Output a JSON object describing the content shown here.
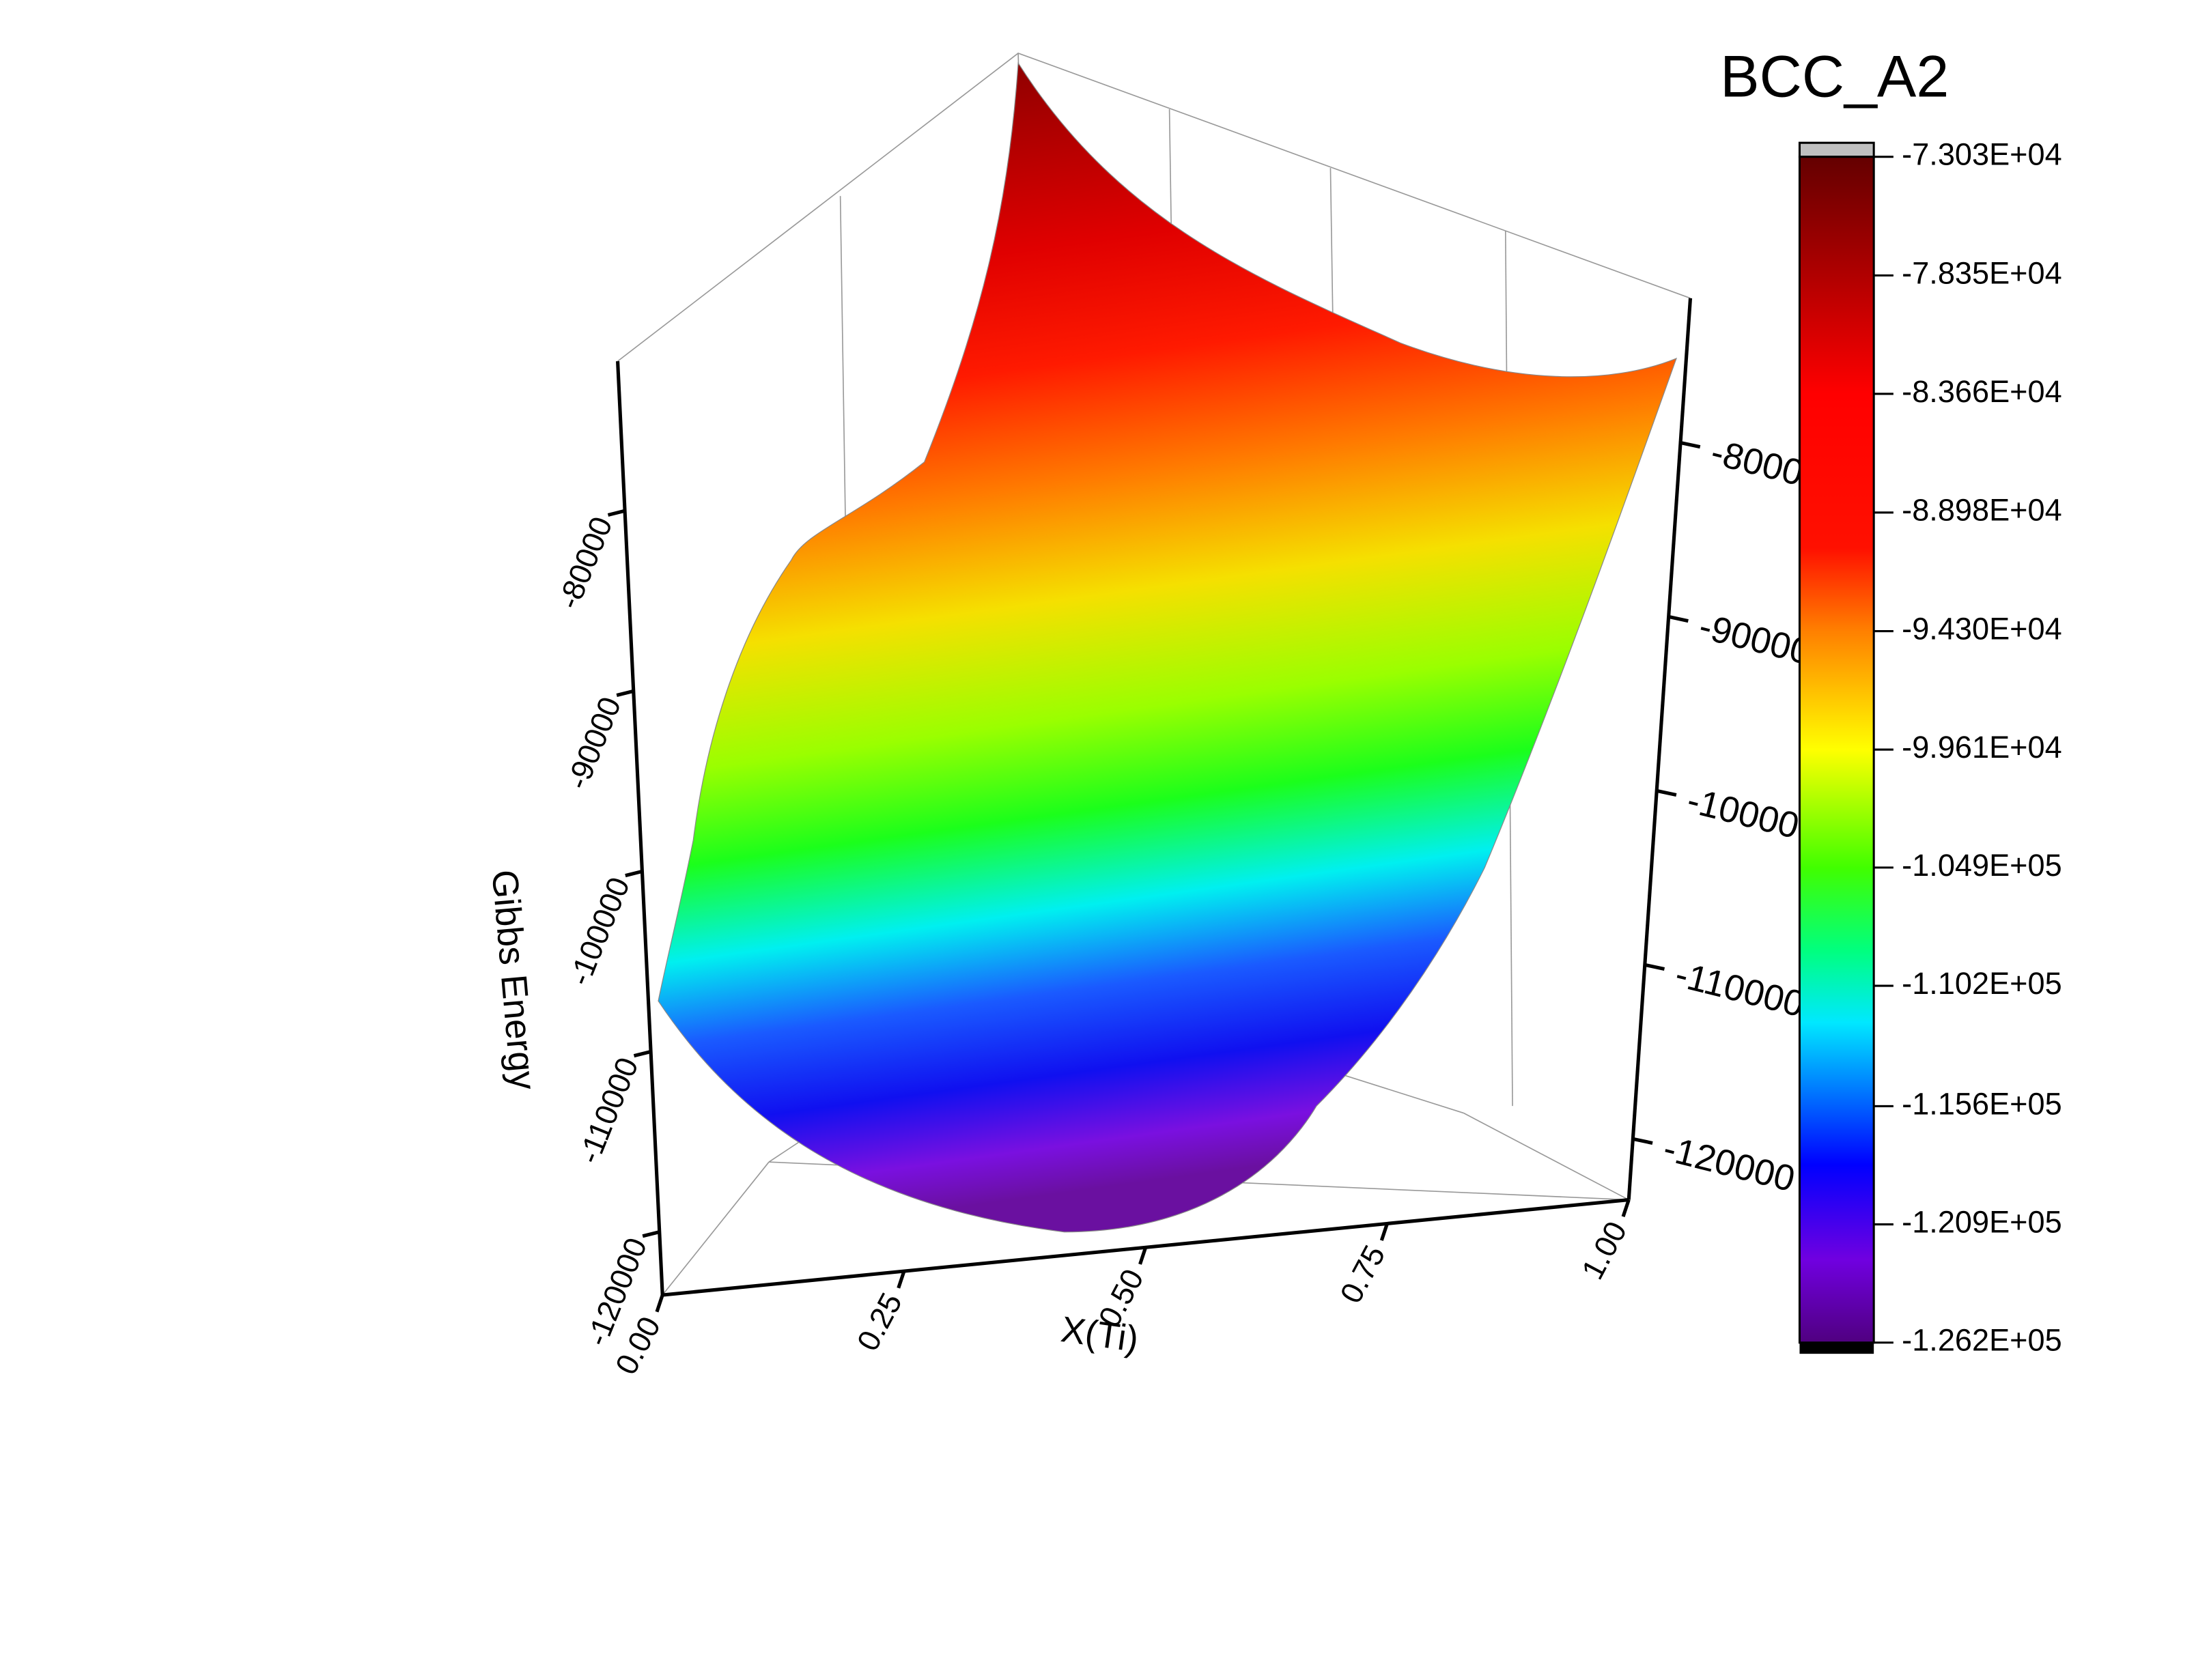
{
  "chart_data": {
    "type": "surface",
    "title": "BCC_A2",
    "xlabel": "X(Ti)",
    "zlabel": "Gibbs Energy",
    "xlim": [
      0,
      1
    ],
    "xticks": [
      {
        "value": 0,
        "label": "0.00"
      },
      {
        "value": 0.25,
        "label": "0.25"
      },
      {
        "value": 0.5,
        "label": "0.50"
      },
      {
        "value": 0.75,
        "label": "0.75"
      },
      {
        "value": 1,
        "label": "1.00"
      }
    ],
    "zlim": [
      -123500,
      -71700
    ],
    "zticks": [
      -80000,
      -90000,
      -100000,
      -110000,
      -120000
    ],
    "colorbar": {
      "clim": [
        -126200,
        -73030
      ],
      "ticks": [
        {
          "value": -73030,
          "label": "-7.303E+04"
        },
        {
          "value": -78350,
          "label": "-7.835E+04"
        },
        {
          "value": -83660,
          "label": "-8.366E+04"
        },
        {
          "value": -88980,
          "label": "-8.898E+04"
        },
        {
          "value": -94300,
          "label": "-9.430E+04"
        },
        {
          "value": -99610,
          "label": "-9.961E+04"
        },
        {
          "value": -104900,
          "label": "-1.049E+05"
        },
        {
          "value": -110200,
          "label": "-1.102E+05"
        },
        {
          "value": -115600,
          "label": "-1.156E+05"
        },
        {
          "value": -120900,
          "label": "-1.209E+05"
        },
        {
          "value": -126200,
          "label": "-1.262E+05"
        }
      ]
    }
  }
}
